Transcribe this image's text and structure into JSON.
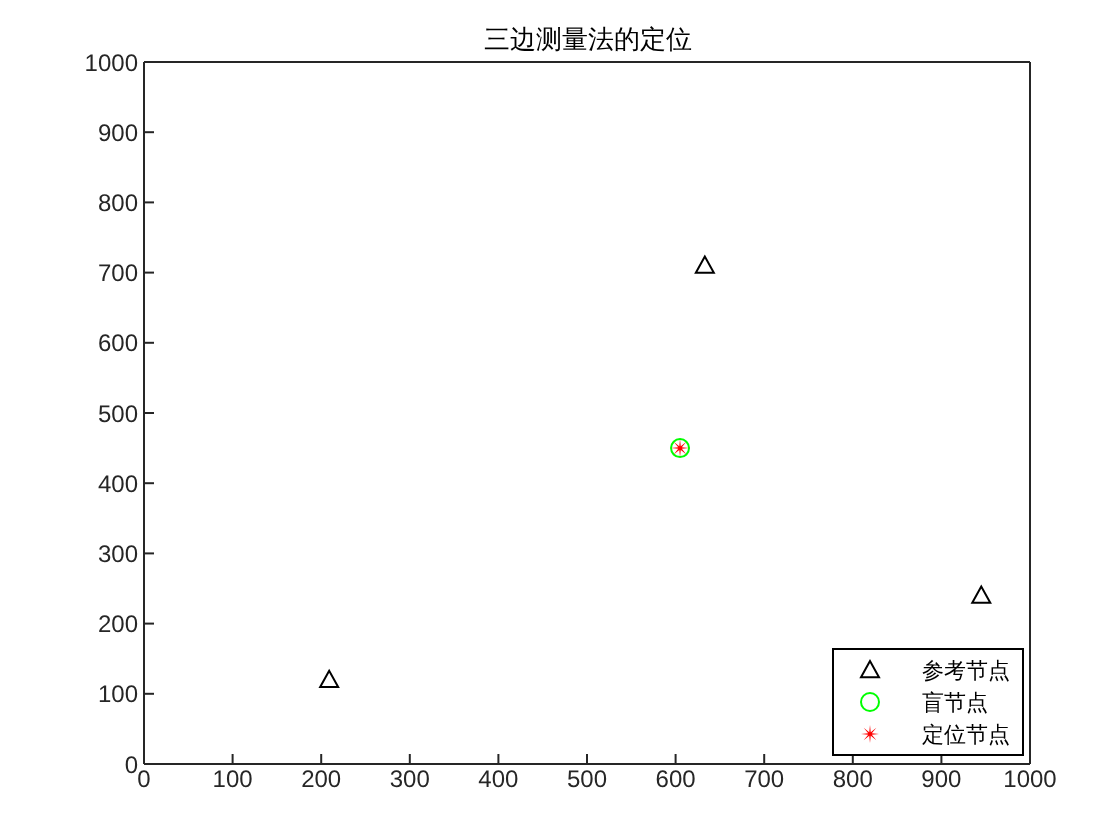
{
  "chart_data": {
    "type": "scatter",
    "title": "三边测量法的定位",
    "xlim": [
      0,
      1000
    ],
    "xticks": [
      0,
      100,
      200,
      300,
      400,
      500,
      600,
      700,
      800,
      900,
      1000
    ],
    "ylim": [
      0,
      1000
    ],
    "yticks": [
      0,
      100,
      200,
      300,
      400,
      500,
      600,
      700,
      800,
      900,
      1000
    ],
    "legend": "bottom right",
    "series": [
      {
        "name": "参考节点",
        "color": "#000000",
        "marker": "triangle",
        "x": [
          633,
          209,
          945
        ],
        "values": [
          710,
          120,
          240
        ]
      },
      {
        "name": "盲节点",
        "color": "#00ff00",
        "marker": "circle",
        "x": [
          605
        ],
        "values": [
          450
        ]
      },
      {
        "name": "定位节点",
        "color": "#ff0000",
        "marker": "star",
        "x": [
          605
        ],
        "values": [
          450
        ]
      }
    ]
  }
}
